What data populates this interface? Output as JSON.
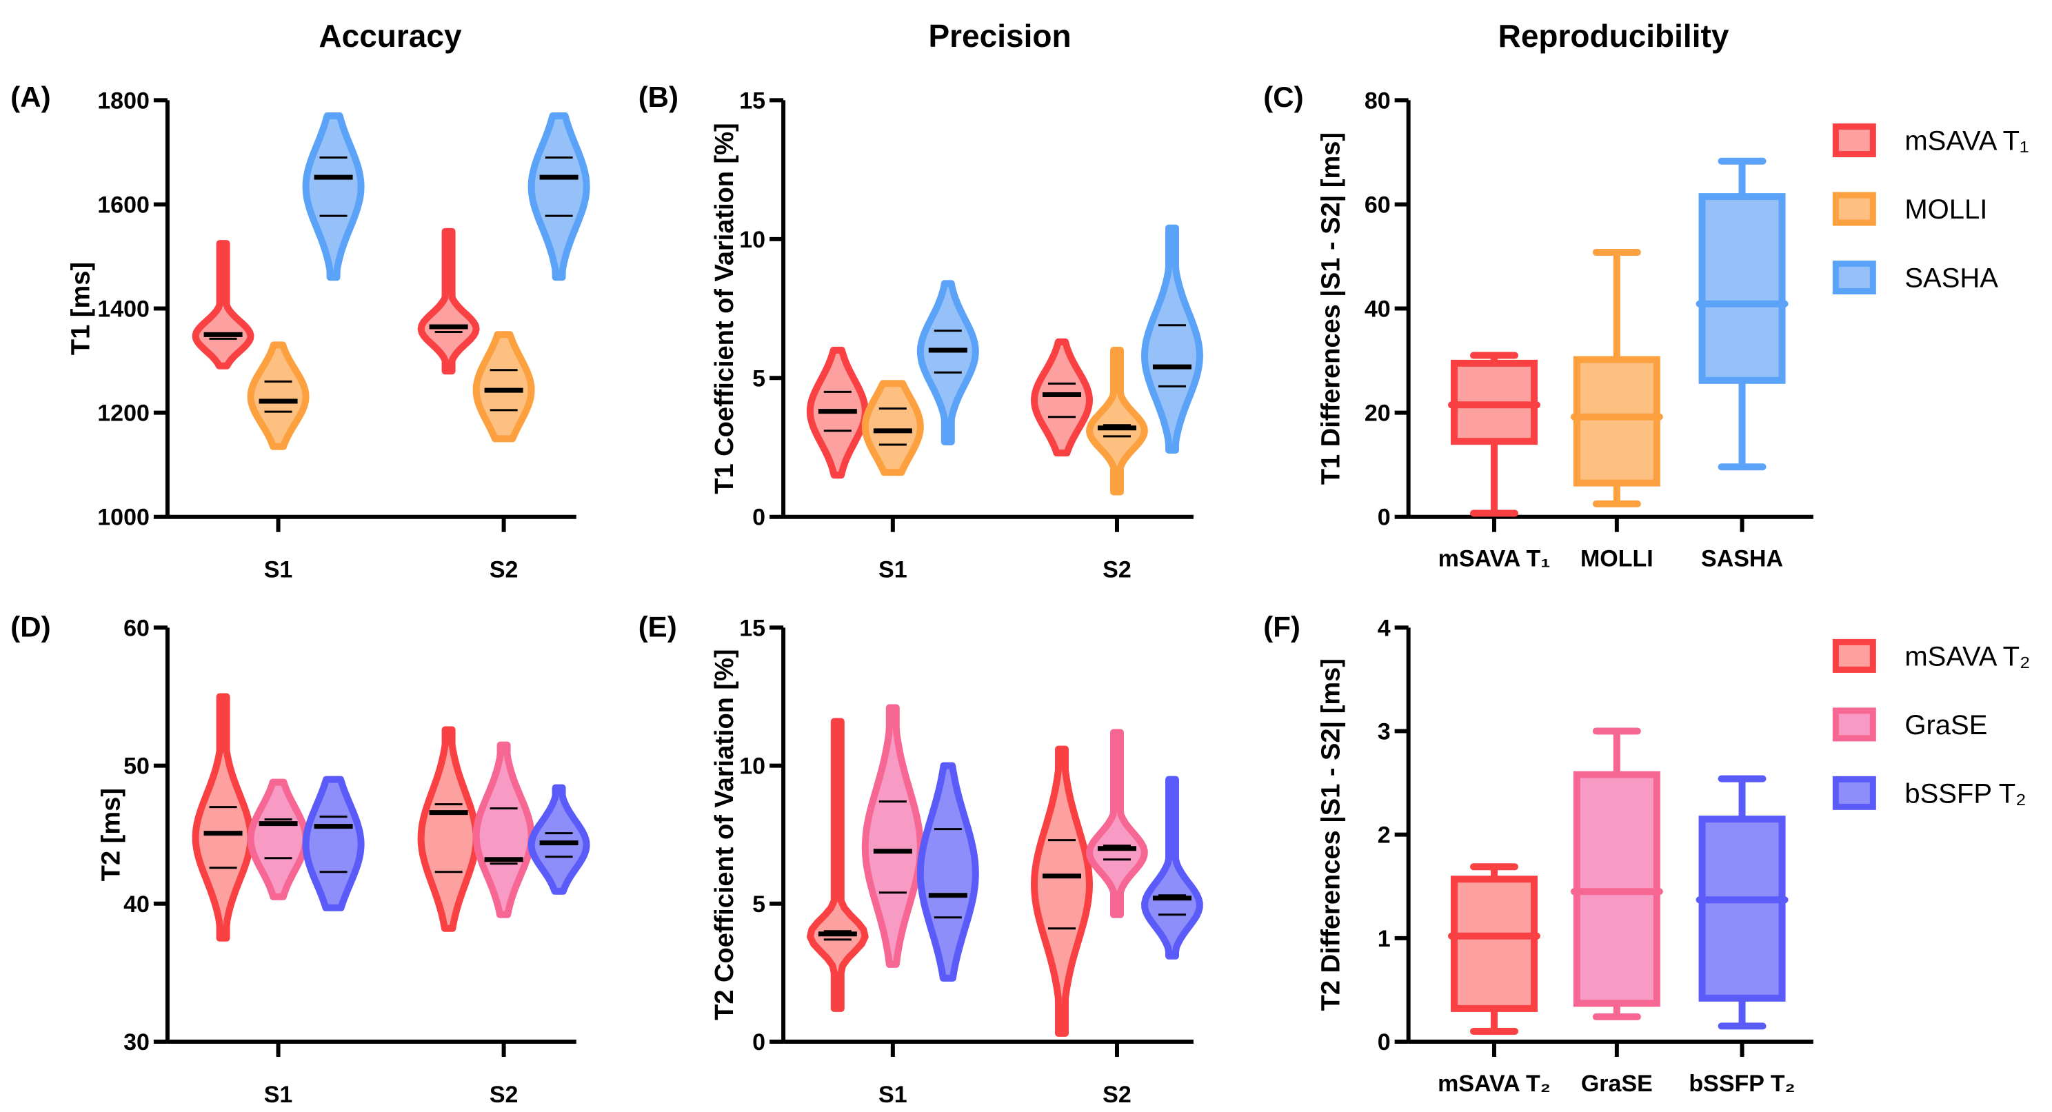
{
  "figure": {
    "column_titles": [
      "Accuracy",
      "Precision",
      "Reproducibility"
    ]
  },
  "legends": [
    {
      "items": [
        {
          "label": "mSAVA T₁",
          "stroke": "#F94144",
          "fill": "#FCA0A0"
        },
        {
          "label": "MOLLI",
          "stroke": "#FCA040",
          "fill": "#FDC080"
        },
        {
          "label": "SASHA",
          "stroke": "#5BA3F8",
          "fill": "#95C1F8"
        }
      ]
    },
    {
      "items": [
        {
          "label": "mSAVA T₂",
          "stroke": "#F94144",
          "fill": "#FCA0A0"
        },
        {
          "label": "GraSE",
          "stroke": "#F76794",
          "fill": "#F79BC5"
        },
        {
          "label": "bSSFP T₂",
          "stroke": "#5A5BF8",
          "fill": "#8E8EFA"
        }
      ]
    }
  ],
  "chart_data": [
    {
      "panel": "(A)",
      "type": "violin",
      "title": "Accuracy",
      "ylabel": "T1 [ms]",
      "ylim": [
        1000,
        1800
      ],
      "yticks": [
        1000,
        1200,
        1400,
        1600,
        1800
      ],
      "categories": [
        "S1",
        "S2"
      ],
      "series": [
        {
          "name": "mSAVA T1",
          "color": "#F94144",
          "fill": "#FCA0A0",
          "values": [
            {
              "min": 1290,
              "q1": 1342,
              "median": 1350,
              "q3": 1352,
              "max": 1525
            },
            {
              "min": 1280,
              "q1": 1355,
              "median": 1365,
              "q3": 1367,
              "max": 1548
            }
          ]
        },
        {
          "name": "MOLLI",
          "color": "#FCA040",
          "fill": "#FDC080",
          "values": [
            {
              "min": 1135,
              "q1": 1202,
              "median": 1222,
              "q3": 1260,
              "max": 1330
            },
            {
              "min": 1150,
              "q1": 1205,
              "median": 1243,
              "q3": 1282,
              "max": 1350
            }
          ]
        },
        {
          "name": "SASHA",
          "color": "#5BA3F8",
          "fill": "#95C1F8",
          "values": [
            {
              "min": 1460,
              "q1": 1578,
              "median": 1652,
              "q3": 1690,
              "max": 1770
            },
            {
              "min": 1460,
              "q1": 1578,
              "median": 1652,
              "q3": 1690,
              "max": 1770
            }
          ]
        }
      ]
    },
    {
      "panel": "(B)",
      "type": "violin",
      "title": "Precision",
      "ylabel": "T1 Coefficient of Variation [%]",
      "ylim": [
        0,
        15
      ],
      "yticks": [
        0,
        5,
        10,
        15
      ],
      "categories": [
        "S1",
        "S2"
      ],
      "series": [
        {
          "name": "mSAVA T1",
          "color": "#F94144",
          "fill": "#FCA0A0",
          "values": [
            {
              "min": 1.5,
              "q1": 3.1,
              "median": 3.8,
              "q3": 4.5,
              "max": 6.0
            },
            {
              "min": 2.3,
              "q1": 3.6,
              "median": 4.4,
              "q3": 4.8,
              "max": 6.3
            }
          ]
        },
        {
          "name": "MOLLI",
          "color": "#FCA040",
          "fill": "#FDC080",
          "values": [
            {
              "min": 1.6,
              "q1": 2.6,
              "median": 3.1,
              "q3": 3.9,
              "max": 4.8
            },
            {
              "min": 0.9,
              "q1": 2.9,
              "median": 3.2,
              "q3": 3.3,
              "max": 6.0
            }
          ]
        },
        {
          "name": "SASHA",
          "color": "#5BA3F8",
          "fill": "#95C1F8",
          "values": [
            {
              "min": 2.7,
              "q1": 5.2,
              "median": 6.0,
              "q3": 6.7,
              "max": 8.4
            },
            {
              "min": 2.4,
              "q1": 4.7,
              "median": 5.4,
              "q3": 6.9,
              "max": 10.4
            }
          ]
        }
      ]
    },
    {
      "panel": "(C)",
      "type": "box",
      "title": "Reproducibility",
      "ylabel": "T1 Differences |S1 - S2| [ms]",
      "ylim": [
        0,
        80
      ],
      "yticks": [
        0,
        20,
        40,
        60,
        80
      ],
      "categories": [
        "mSAVA T₁",
        "MOLLI",
        "SASHA"
      ],
      "series": [
        {
          "name": "mSAVA T1",
          "color": "#F94144",
          "fill": "#FCA0A0",
          "min": 0.7,
          "q1": 14.5,
          "median": 21.5,
          "q3": 29.5,
          "max": 31
        },
        {
          "name": "MOLLI",
          "color": "#FCA040",
          "fill": "#FDC080",
          "min": 2.5,
          "q1": 6.5,
          "median": 19.2,
          "q3": 30.2,
          "max": 50.8
        },
        {
          "name": "SASHA",
          "color": "#5BA3F8",
          "fill": "#95C1F8",
          "min": 9.6,
          "q1": 26.2,
          "median": 40.9,
          "q3": 61.5,
          "max": 68.3
        }
      ]
    },
    {
      "panel": "(D)",
      "type": "violin",
      "title": "",
      "ylabel": "T2 [ms]",
      "ylim": [
        30,
        60
      ],
      "yticks": [
        30,
        40,
        50,
        60
      ],
      "categories": [
        "S1",
        "S2"
      ],
      "series": [
        {
          "name": "mSAVA T2",
          "color": "#F94144",
          "fill": "#FCA0A0",
          "values": [
            {
              "min": 37.5,
              "q1": 42.6,
              "median": 45.1,
              "q3": 47.0,
              "max": 55.0
            },
            {
              "min": 38.2,
              "q1": 42.3,
              "median": 46.6,
              "q3": 47.2,
              "max": 52.6
            }
          ]
        },
        {
          "name": "GraSE",
          "color": "#F76794",
          "fill": "#F79BC5",
          "values": [
            {
              "min": 40.5,
              "q1": 43.3,
              "median": 45.8,
              "q3": 46.1,
              "max": 48.8
            },
            {
              "min": 39.2,
              "q1": 42.9,
              "median": 43.2,
              "q3": 46.9,
              "max": 51.5
            }
          ]
        },
        {
          "name": "bSSFP T2",
          "color": "#5A5BF8",
          "fill": "#8E8EFA",
          "values": [
            {
              "min": 39.7,
              "q1": 42.3,
              "median": 45.6,
              "q3": 46.3,
              "max": 49.0
            },
            {
              "min": 40.9,
              "q1": 43.4,
              "median": 44.4,
              "q3": 45.1,
              "max": 48.4
            }
          ]
        }
      ]
    },
    {
      "panel": "(E)",
      "type": "violin",
      "title": "",
      "ylabel": "T2 Coefficient of Variation [%]",
      "ylim": [
        0,
        15
      ],
      "yticks": [
        0,
        5,
        10,
        15
      ],
      "categories": [
        "S1",
        "S2"
      ],
      "series": [
        {
          "name": "mSAVA T2",
          "color": "#F94144",
          "fill": "#FCA0A0",
          "values": [
            {
              "min": 1.2,
              "q1": 3.7,
              "median": 3.9,
              "q3": 4.0,
              "max": 11.6
            },
            {
              "min": 0.3,
              "q1": 4.1,
              "median": 6.0,
              "q3": 7.3,
              "max": 10.6
            }
          ]
        },
        {
          "name": "GraSE",
          "color": "#F76794",
          "fill": "#F79BC5",
          "values": [
            {
              "min": 2.8,
              "q1": 5.4,
              "median": 6.9,
              "q3": 8.7,
              "max": 12.1
            },
            {
              "min": 4.6,
              "q1": 6.6,
              "median": 7.0,
              "q3": 7.1,
              "max": 11.2
            }
          ]
        },
        {
          "name": "bSSFP T2",
          "color": "#5A5BF8",
          "fill": "#8E8EFA",
          "values": [
            {
              "min": 2.3,
              "q1": 4.5,
              "median": 5.3,
              "q3": 7.7,
              "max": 10.0
            },
            {
              "min": 3.1,
              "q1": 4.6,
              "median": 5.2,
              "q3": 5.3,
              "max": 9.5
            }
          ]
        }
      ]
    },
    {
      "panel": "(F)",
      "type": "box",
      "title": "",
      "ylabel": "T2 Differences |S1 - S2| [ms]",
      "ylim": [
        0,
        4
      ],
      "yticks": [
        0,
        1,
        2,
        3,
        4
      ],
      "categories": [
        "mSAVA T₂",
        "GraSE",
        "bSSFP T₂"
      ],
      "series": [
        {
          "name": "mSAVA T2",
          "color": "#F94144",
          "fill": "#FCA0A0",
          "min": 0.1,
          "q1": 0.32,
          "median": 1.02,
          "q3": 1.57,
          "max": 1.69
        },
        {
          "name": "GraSE",
          "color": "#F76794",
          "fill": "#F79BC5",
          "min": 0.24,
          "q1": 0.37,
          "median": 1.45,
          "q3": 2.58,
          "max": 3.0
        },
        {
          "name": "bSSFP T2",
          "color": "#5A5BF8",
          "fill": "#8E8EFA",
          "min": 0.15,
          "q1": 0.42,
          "median": 1.37,
          "q3": 2.15,
          "max": 2.54
        }
      ]
    }
  ]
}
